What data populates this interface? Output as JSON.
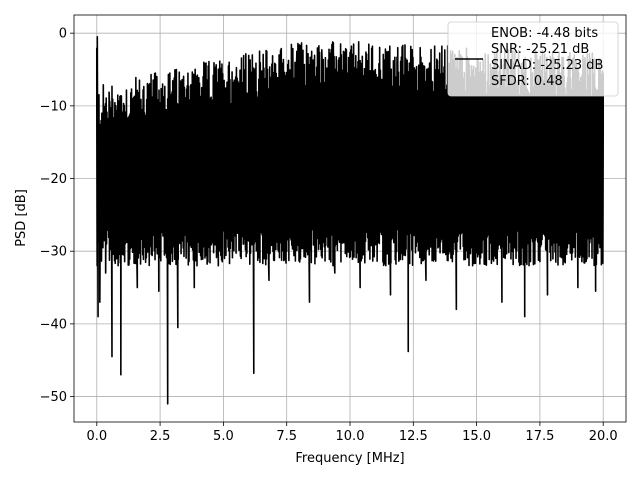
{
  "chart_data": {
    "type": "line",
    "title": "",
    "xlabel": "Frequency [MHz]",
    "ylabel": "PSD [dB]",
    "xlim": [
      -0.9,
      20.9
    ],
    "ylim": [
      -53.5,
      2.5
    ],
    "xticks": [
      0.0,
      2.5,
      5.0,
      7.5,
      10.0,
      12.5,
      15.0,
      17.5,
      20.0
    ],
    "xtick_labels": [
      "0.0",
      "2.5",
      "5.0",
      "7.5",
      "10.0",
      "12.5",
      "15.0",
      "17.5",
      "20.0"
    ],
    "yticks": [
      0,
      -10,
      -20,
      -30,
      -40,
      -50
    ],
    "ytick_labels": [
      "0",
      "−10",
      "−20",
      "−30",
      "−40",
      "−50"
    ],
    "grid": true,
    "legend_position": "top-right",
    "series": [
      {
        "name": "ENOB: -4.48 bits\nSNR: -25.21 dB\nSINAD: -25.23 dB\nSFDR: 0.48",
        "color": "#000000",
        "x": [
          0.0,
          0.02,
          0.05,
          0.08,
          0.12,
          0.2,
          0.35,
          0.5,
          0.6,
          0.75,
          0.95,
          1.2,
          1.6,
          2.0,
          2.45,
          2.6,
          2.8,
          3.2,
          3.6,
          3.85,
          4.2,
          4.8,
          5.2,
          5.8,
          6.2,
          6.25,
          6.8,
          7.2,
          7.5,
          7.9,
          8.4,
          8.9,
          9.4,
          9.8,
          10.4,
          11.0,
          11.6,
          12.2,
          12.3,
          12.6,
          13.0,
          13.6,
          14.2,
          14.8,
          15.2,
          15.6,
          16.0,
          16.4,
          16.9,
          17.4,
          17.8,
          18.4,
          19.0,
          19.4,
          19.7,
          20.0
        ],
        "y": [
          -2.0,
          -0.5,
          -39.0,
          -10.0,
          -37.0,
          -15.0,
          -33.0,
          -9.5,
          -44.5,
          -10.0,
          -47.0,
          -13.0,
          -35.0,
          -8.0,
          -35.5,
          -7.0,
          -51.0,
          -40.5,
          -5.5,
          -35.0,
          -6.0,
          -32.0,
          -4.5,
          -29.0,
          -46.8,
          -5.0,
          -34.0,
          -3.0,
          -30.0,
          -2.5,
          -37.0,
          -4.0,
          -33.0,
          -3.5,
          -35.0,
          -5.0,
          -36.0,
          -4.0,
          -43.8,
          -5.5,
          -34.0,
          -6.0,
          -38.0,
          -4.5,
          -30.0,
          -5.0,
          -37.0,
          -6.0,
          -39.0,
          -6.5,
          -36.0,
          -7.0,
          -35.0,
          -8.5,
          -35.5,
          -13.0
        ]
      }
    ]
  }
}
